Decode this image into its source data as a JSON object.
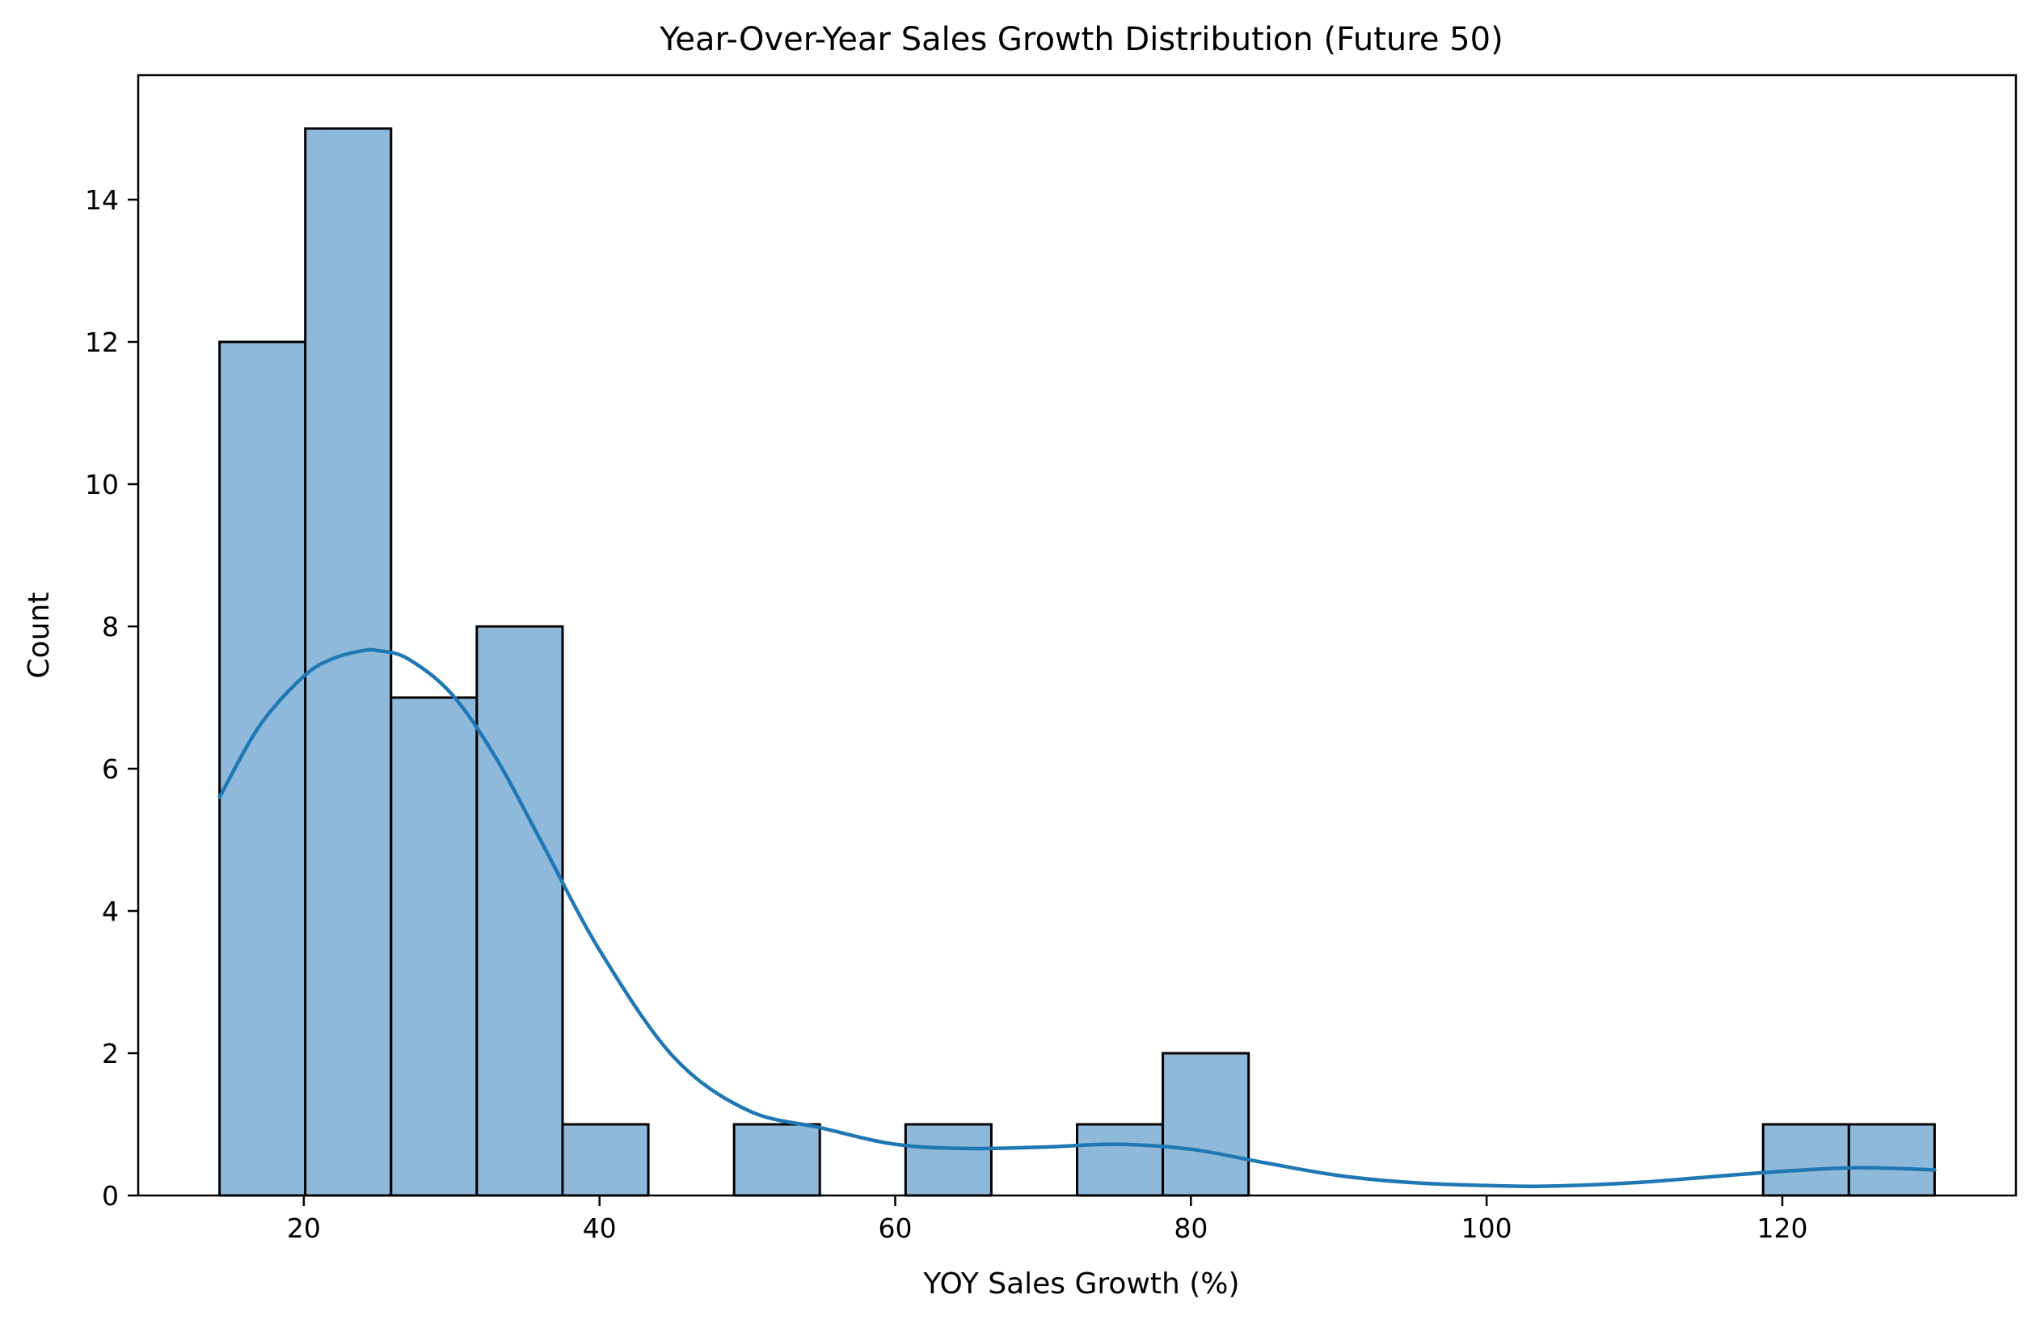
{
  "chart_data": {
    "type": "bar",
    "title": "Year-Over-Year Sales Growth Distribution (Future 50)",
    "xlabel": "YOY Sales Growth (%)",
    "ylabel": "Count",
    "xlim": [
      8.8,
      135.8
    ],
    "ylim": [
      0,
      15.75
    ],
    "x_ticks": [
      20,
      40,
      60,
      80,
      100,
      120
    ],
    "y_ticks": [
      0,
      2,
      4,
      6,
      8,
      10,
      12,
      14
    ],
    "bin_edges": [
      14.3,
      20.1,
      25.9,
      31.7,
      37.5,
      43.3,
      49.1,
      54.9,
      60.7,
      66.5,
      72.3,
      78.1,
      83.9,
      89.7,
      95.5,
      101.3,
      107.1,
      112.9,
      118.7,
      124.5,
      130.3
    ],
    "counts": [
      12,
      15,
      7,
      8,
      1,
      0,
      1,
      0,
      1,
      0,
      1,
      2,
      0,
      0,
      0,
      0,
      0,
      0,
      1,
      1
    ],
    "bar_color": "#8fb9da",
    "bar_edge_color": "#000000",
    "kde": {
      "color": "#1f77b4",
      "x": [
        14.3,
        17,
        20,
        22,
        24,
        25,
        27,
        30,
        33,
        36,
        40,
        45,
        50,
        55,
        60,
        65,
        70,
        75,
        80,
        85,
        90,
        95,
        100,
        104,
        110,
        115,
        120,
        125,
        130.3
      ],
      "y": [
        5.6,
        6.6,
        7.3,
        7.55,
        7.66,
        7.66,
        7.55,
        7.05,
        6.15,
        5.0,
        3.45,
        1.95,
        1.2,
        0.95,
        0.72,
        0.66,
        0.68,
        0.72,
        0.65,
        0.46,
        0.28,
        0.18,
        0.14,
        0.13,
        0.18,
        0.26,
        0.34,
        0.39,
        0.36
      ]
    }
  }
}
